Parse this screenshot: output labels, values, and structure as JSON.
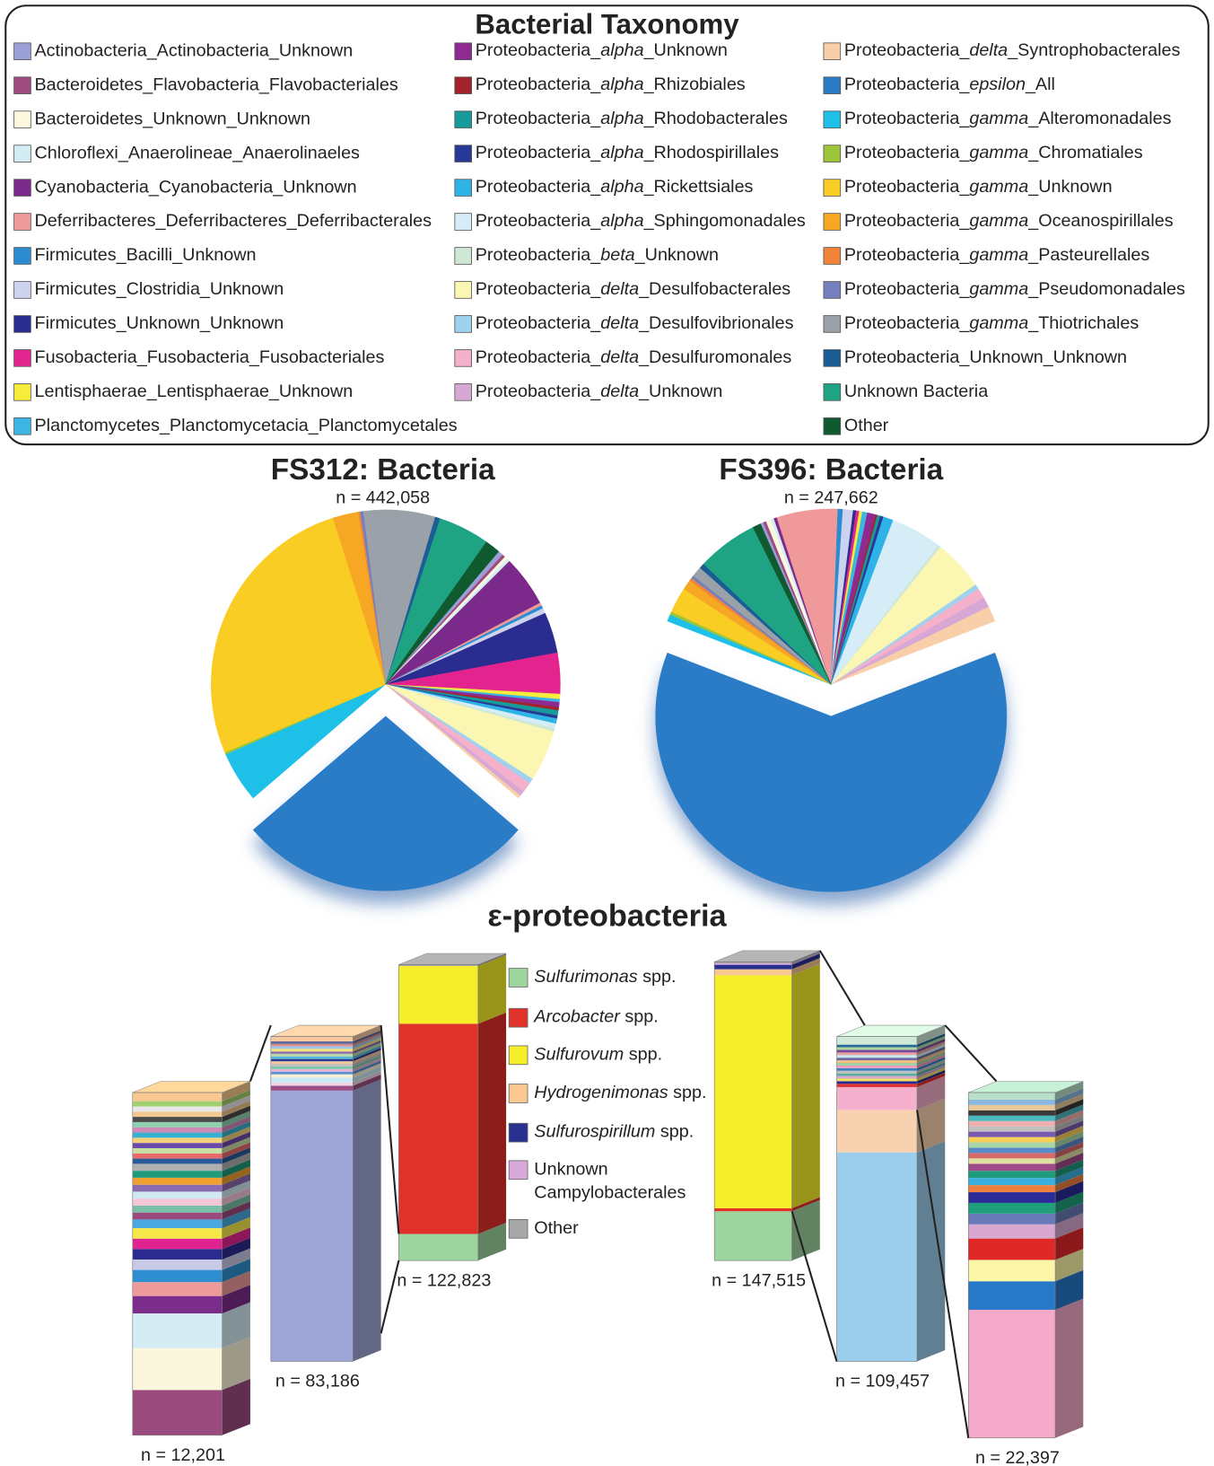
{
  "taxonomy_legend": {
    "title": "Bacterial Taxonomy",
    "entries": [
      {
        "name": "Actinobacteria_Actinobacteria_Unknown",
        "color": "#9a9fd6"
      },
      {
        "name": "Bacteroidetes_Flavobacteria_Flavobacteriales",
        "color": "#a04a7e"
      },
      {
        "name": "Bacteroidetes_Unknown_Unknown",
        "color": "#fbf8df"
      },
      {
        "name": "Chloroflexi_Anaerolineae_Anaerolinaeles",
        "color": "#d4ecf5"
      },
      {
        "name": "Cyanobacteria_Cyanobacteria_Unknown",
        "color": "#7b2a8c"
      },
      {
        "name": "Deferribacteres_Deferribacteres_Deferribacterales",
        "color": "#f0999a"
      },
      {
        "name": "Firmicutes_Bacilli_Unknown",
        "color": "#2b8dcf"
      },
      {
        "name": "Firmicutes_Clostridia_Unknown",
        "color": "#cdd3ee"
      },
      {
        "name": "Firmicutes_Unknown_Unknown",
        "color": "#2a2d8f"
      },
      {
        "name": "Fusobacteria_Fusobacteria_Fusobacteriales",
        "color": "#e3248f"
      },
      {
        "name": "Lentisphaerae_Lentisphaerae_Unknown",
        "color": "#f7ec3a"
      },
      {
        "name": "Planctomycetes_Planctomycetacia_Planctomycetales",
        "color": "#3cb5e5"
      },
      {
        "name": "Proteobacteria_alpha_Unknown",
        "color": "#8e2a92",
        "italic": true
      },
      {
        "name": "Proteobacteria_alpha_Rhizobiales",
        "color": "#a3232a",
        "italic": true
      },
      {
        "name": "Proteobacteria_alpha_Rhodobacterales",
        "color": "#169a9a",
        "italic": true
      },
      {
        "name": "Proteobacteria_alpha_Rhodospirillales",
        "color": "#283896",
        "italic": true
      },
      {
        "name": "Proteobacteria_alpha_Rickettsiales",
        "color": "#2fb3e6",
        "italic": true
      },
      {
        "name": "Proteobacteria_alpha_Sphingomonadales",
        "color": "#d6ecf7",
        "italic": true
      },
      {
        "name": "Proteobacteria_beta_Unknown",
        "color": "#cfe8d6",
        "italic": true
      },
      {
        "name": "Proteobacteria_delta_Desulfobacterales",
        "color": "#fbf6b2",
        "italic": true
      },
      {
        "name": "Proteobacteria_delta_Desulfovibrionales",
        "color": "#9fd2ee",
        "italic": true
      },
      {
        "name": "Proteobacteria_delta_Desulfuromonales",
        "color": "#f5b0cb",
        "italic": true
      },
      {
        "name": "Proteobacteria_delta_Unknown",
        "color": "#d8a8d4",
        "italic": true
      },
      {
        "name": "Proteobacteria_delta_Syntrophobacterales",
        "color": "#f8cfa8",
        "italic": true
      },
      {
        "name": "Proteobacteria_epsilon_All",
        "color": "#2a7bc6",
        "italic": true
      },
      {
        "name": "Proteobacteria_gamma_Alteromonadales",
        "color": "#1fc0e8",
        "italic": true
      },
      {
        "name": "Proteobacteria_gamma_Chromatiales",
        "color": "#9cc53a",
        "italic": true
      },
      {
        "name": "Proteobacteria_gamma_Unknown",
        "color": "#f9cd24",
        "italic": true
      },
      {
        "name": "Proteobacteria_gamma_Oceanospirillales",
        "color": "#f6a723",
        "italic": true
      },
      {
        "name": "Proteobacteria_gamma_Pasteurellales",
        "color": "#f0853a",
        "italic": true
      },
      {
        "name": "Proteobacteria_gamma_Pseudomonadales",
        "color": "#7480bd",
        "italic": true
      },
      {
        "name": "Proteobacteria_gamma_Thiotrichales",
        "color": "#9aa1a8",
        "italic": true
      },
      {
        "name": "Proteobacteria_Unknown_Unknown",
        "color": "#1b5d95"
      },
      {
        "name": "Unknown Bacteria",
        "color": "#1ea383"
      },
      {
        "name": "Other",
        "color": "#0f5a2e"
      }
    ]
  },
  "chart_data": [
    {
      "type": "pie",
      "title": "FS312: Bacteria",
      "subtitle": "n = 442,058",
      "values": [
        0.5,
        0.3,
        0.3,
        0.3,
        5,
        0.3,
        0.3,
        0.5,
        4,
        4,
        0.5,
        0.3,
        0.5,
        0.3,
        0.5,
        0.3,
        0.5,
        0.5,
        0.3,
        5,
        0.5,
        1,
        0.5,
        0.3,
        29,
        5,
        0.2,
        28,
        2.5,
        0.2,
        0.3,
        7,
        0.5,
        5,
        1.5
      ]
    },
    {
      "type": "pie",
      "title": "FS396: Bacteria",
      "subtitle": "n = 247,662",
      "values": [
        0.3,
        0.3,
        0.5,
        0.3,
        0.3,
        6,
        0.5,
        1,
        0.3,
        0.3,
        0.3,
        0.5,
        0.8,
        0.2,
        0.3,
        0.3,
        1,
        5,
        0.3,
        5,
        0.5,
        1,
        1,
        1.5,
        66,
        0.7,
        0.3,
        2.5,
        1,
        0.3,
        0.3,
        1,
        0.5,
        6,
        0.8
      ]
    },
    {
      "type": "stacked-bar",
      "title": "ε-proteobacteria",
      "categories": [
        "n = 122,823",
        "n = 147,515"
      ],
      "series": [
        {
          "name": "Sulfurimonas spp.",
          "color": "#9ed49e",
          "italic": true,
          "values": [
            9,
            16.5
          ]
        },
        {
          "name": "Arcobacter spp.",
          "color": "#e0312a",
          "italic": true,
          "values": [
            71,
            1
          ]
        },
        {
          "name": "Sulfurovum spp.",
          "color": "#f5ee2a",
          "italic": true,
          "values": [
            19.5,
            78
          ]
        },
        {
          "name": "Hydrogenimonas spp.",
          "color": "#f8c890",
          "italic": true,
          "values": [
            0,
            2
          ]
        },
        {
          "name": "Sulfurospirillum spp.",
          "color": "#2a3090",
          "italic": true,
          "values": [
            0,
            1.5
          ]
        },
        {
          "name": "Unknown Campylobacterales",
          "color": "#d8a8d8",
          "values": [
            0,
            0.5
          ]
        },
        {
          "name": "Other",
          "color": "#a8a8a8",
          "values": [
            0.5,
            0.5
          ]
        }
      ],
      "detail_bars": [
        {
          "label": "n = 12,201",
          "segments": [
            {
              "color": "#9b4a7e",
              "value": 13
            },
            {
              "color": "#fbf7dc",
              "value": 12
            },
            {
              "color": "#d5ecf5",
              "value": 10
            },
            {
              "color": "#7a2d8a",
              "value": 5
            },
            {
              "color": "#ef9a9a",
              "value": 4
            },
            {
              "color": "#2f8ed0",
              "value": 3.5
            },
            {
              "color": "#c9c9e8",
              "value": 3
            },
            {
              "color": "#2b2b8f",
              "value": 3
            },
            {
              "color": "#e0238f",
              "value": 3
            },
            {
              "color": "#f7e84a",
              "value": 3
            },
            {
              "color": "#4aa8e0",
              "value": 2.5
            },
            {
              "color": "#9b4a7e",
              "value": 2
            },
            {
              "color": "#7ac0a8",
              "value": 2
            },
            {
              "color": "#f5c6d8",
              "value": 2
            },
            {
              "color": "#d0e8f0",
              "value": 2
            },
            {
              "color": "#8a6ab0",
              "value": 2
            },
            {
              "color": "#f0a030",
              "value": 2
            },
            {
              "color": "#1f9a7a",
              "value": 2
            },
            {
              "color": "#b0b0b0",
              "value": 2
            },
            {
              "color": "#2a5a9a",
              "value": 1.5
            },
            {
              "color": "#e86a6a",
              "value": 1.5
            },
            {
              "color": "#c8e0a0",
              "value": 1.5
            },
            {
              "color": "#6a4aa8",
              "value": 1.5
            },
            {
              "color": "#f4d07a",
              "value": 1.5
            },
            {
              "color": "#3ab0d0",
              "value": 1.5
            },
            {
              "color": "#d08ab8",
              "value": 1.5
            },
            {
              "color": "#8fd0b0",
              "value": 1.5
            },
            {
              "color": "#4a4a4a",
              "value": 1.5
            },
            {
              "color": "#f0c890",
              "value": 1.5
            },
            {
              "color": "#e8e8e8",
              "value": 1.5
            },
            {
              "color": "#a0d070",
              "value": 1.5
            },
            {
              "color": "#f8c890",
              "value": 2.5
            }
          ]
        },
        {
          "label": "n = 83,186",
          "segments": [
            {
              "color": "#9da6d6",
              "value": 83
            },
            {
              "color": "#9a4f86",
              "value": 1.5
            },
            {
              "color": "#f3d3e3",
              "value": 1
            },
            {
              "color": "#c8e8f5",
              "value": 1.5
            },
            {
              "color": "#f7f3d1",
              "value": 1
            },
            {
              "color": "#5b8fd0",
              "value": 0.8
            },
            {
              "color": "#e4b3d6",
              "value": 0.8
            },
            {
              "color": "#7fc6a4",
              "value": 0.8
            },
            {
              "color": "#c0c0c0",
              "value": 0.8
            },
            {
              "color": "#f6c49a",
              "value": 0.8
            },
            {
              "color": "#2b3a8f",
              "value": 0.7
            },
            {
              "color": "#58b8d8",
              "value": 0.8
            },
            {
              "color": "#b9d9a7",
              "value": 0.8
            },
            {
              "color": "#8a6aa8",
              "value": 0.7
            },
            {
              "color": "#f7e27a",
              "value": 0.8
            },
            {
              "color": "#9ec7e8",
              "value": 0.8
            },
            {
              "color": "#d98f8f",
              "value": 0.7
            },
            {
              "color": "#6a6a9a",
              "value": 0.8
            },
            {
              "color": "#f8c9a0",
              "value": 1.5
            }
          ]
        },
        {
          "label": "n = 109,457",
          "segments": [
            {
              "color": "#9bcdec",
              "value": 64
            },
            {
              "color": "#f8d2b0",
              "value": 13
            },
            {
              "color": "#f4b0cc",
              "value": 7
            },
            {
              "color": "#e03030",
              "value": 1
            },
            {
              "color": "#2a2a90",
              "value": 0.8
            },
            {
              "color": "#f0e060",
              "value": 0.8
            },
            {
              "color": "#d8a8d0",
              "value": 0.8
            },
            {
              "color": "#5ab0a0",
              "value": 0.8
            },
            {
              "color": "#c0c0c0",
              "value": 0.8
            },
            {
              "color": "#3a80c0",
              "value": 0.8
            },
            {
              "color": "#f49ac0",
              "value": 0.8
            },
            {
              "color": "#9fd0a0",
              "value": 0.8
            },
            {
              "color": "#f7c080",
              "value": 0.8
            },
            {
              "color": "#6a6aa0",
              "value": 0.8
            },
            {
              "color": "#c8e8f0",
              "value": 0.8
            },
            {
              "color": "#e8a0a0",
              "value": 0.8
            },
            {
              "color": "#7a4a9a",
              "value": 0.8
            },
            {
              "color": "#b0d8a0",
              "value": 0.8
            },
            {
              "color": "#2a6a9a",
              "value": 0.8
            },
            {
              "color": "#cfe9d8",
              "value": 2.5
            }
          ]
        },
        {
          "label": "n = 22,397",
          "segments": [
            {
              "color": "#f4aac8",
              "value": 36
            },
            {
              "color": "#2878c8",
              "value": 8
            },
            {
              "color": "#fbf5a8",
              "value": 6
            },
            {
              "color": "#e02828",
              "value": 6
            },
            {
              "color": "#d8a8d0",
              "value": 4
            },
            {
              "color": "#6a7ab8",
              "value": 3
            },
            {
              "color": "#1fa07a",
              "value": 3
            },
            {
              "color": "#2a2a98",
              "value": 3
            },
            {
              "color": "#f08040",
              "value": 2
            },
            {
              "color": "#3ab0e0",
              "value": 2
            },
            {
              "color": "#1f9a7a",
              "value": 2
            },
            {
              "color": "#9e4a8a",
              "value": 2
            },
            {
              "color": "#e0e0a0",
              "value": 1.5
            },
            {
              "color": "#d86a6a",
              "value": 1.5
            },
            {
              "color": "#5a8ac8",
              "value": 1.5
            },
            {
              "color": "#a8d8a8",
              "value": 1.5
            },
            {
              "color": "#f7d05a",
              "value": 1.5
            },
            {
              "color": "#7a5ab0",
              "value": 1.5
            },
            {
              "color": "#c0c0c0",
              "value": 1.5
            },
            {
              "color": "#f0b0b0",
              "value": 1.5
            },
            {
              "color": "#4ab8c0",
              "value": 1.5
            },
            {
              "color": "#3a3a3a",
              "value": 1.5
            },
            {
              "color": "#e8c898",
              "value": 1.5
            },
            {
              "color": "#8ab8e0",
              "value": 1.5
            },
            {
              "color": "#b8e0c8",
              "value": 2
            }
          ]
        }
      ]
    }
  ]
}
